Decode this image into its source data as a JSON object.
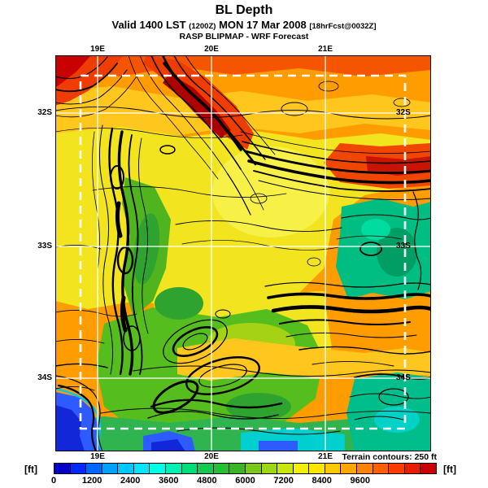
{
  "header": {
    "title": "BL Depth",
    "valid_prefix": "Valid 1400 LST",
    "valid_small1": "(1200Z)",
    "valid_mid": "MON 17 Mar 2008",
    "valid_small2": "[18hrFcst@0032Z]",
    "model_line": "RASP BLIPMAP - WRF Forecast"
  },
  "map": {
    "top_labels": [
      "19E",
      "20E",
      "21E"
    ],
    "bottom_labels": [
      "19E",
      "20E",
      "21E"
    ],
    "left_labels": [
      "32S",
      "33S",
      "34S"
    ],
    "right_labels": [
      "32S",
      "33S",
      "34S"
    ],
    "note": "Terrain contours: 250 ft"
  },
  "colorbar": {
    "unit_left": "[ft]",
    "unit_right": "[ft]",
    "tick_labels": [
      "0",
      "1200",
      "2400",
      "3600",
      "4800",
      "6000",
      "7200",
      "8400",
      "9600"
    ],
    "tick_values": [
      0,
      1200,
      2400,
      3600,
      4800,
      6000,
      7200,
      8400,
      9600
    ],
    "scale_max": 12000,
    "segment_colors": [
      "#0000C8",
      "#0028FF",
      "#0064FF",
      "#00A0FF",
      "#00C8FF",
      "#00E6FF",
      "#00FFE6",
      "#00F0B4",
      "#00DC78",
      "#14C850",
      "#28BE32",
      "#3CB428",
      "#78C81E",
      "#A0D714",
      "#C8E60A",
      "#F0F000",
      "#FFE600",
      "#FFC800",
      "#FFA500",
      "#FF8200",
      "#FF5F00",
      "#FF3C00",
      "#E61E00",
      "#C80000"
    ]
  },
  "chart_data": {
    "type": "heatmap",
    "title": "BL Depth",
    "valid": "1400 LST (1200Z) MON 17 Mar 2008",
    "forecast_offset": "18hrFcst@0032Z",
    "model": "RASP BLIPMAP - WRF Forecast",
    "x_tick_labels": [
      "19E",
      "20E",
      "21E"
    ],
    "y_tick_labels": [
      "32S",
      "33S",
      "34S"
    ],
    "colorbar_unit": "ft",
    "colorbar_tick_values": [
      0,
      1200,
      2400,
      3600,
      4800,
      6000,
      7200,
      8400,
      9600
    ],
    "terrain_contour_interval": "250 ft",
    "legend_position": "bottom"
  }
}
